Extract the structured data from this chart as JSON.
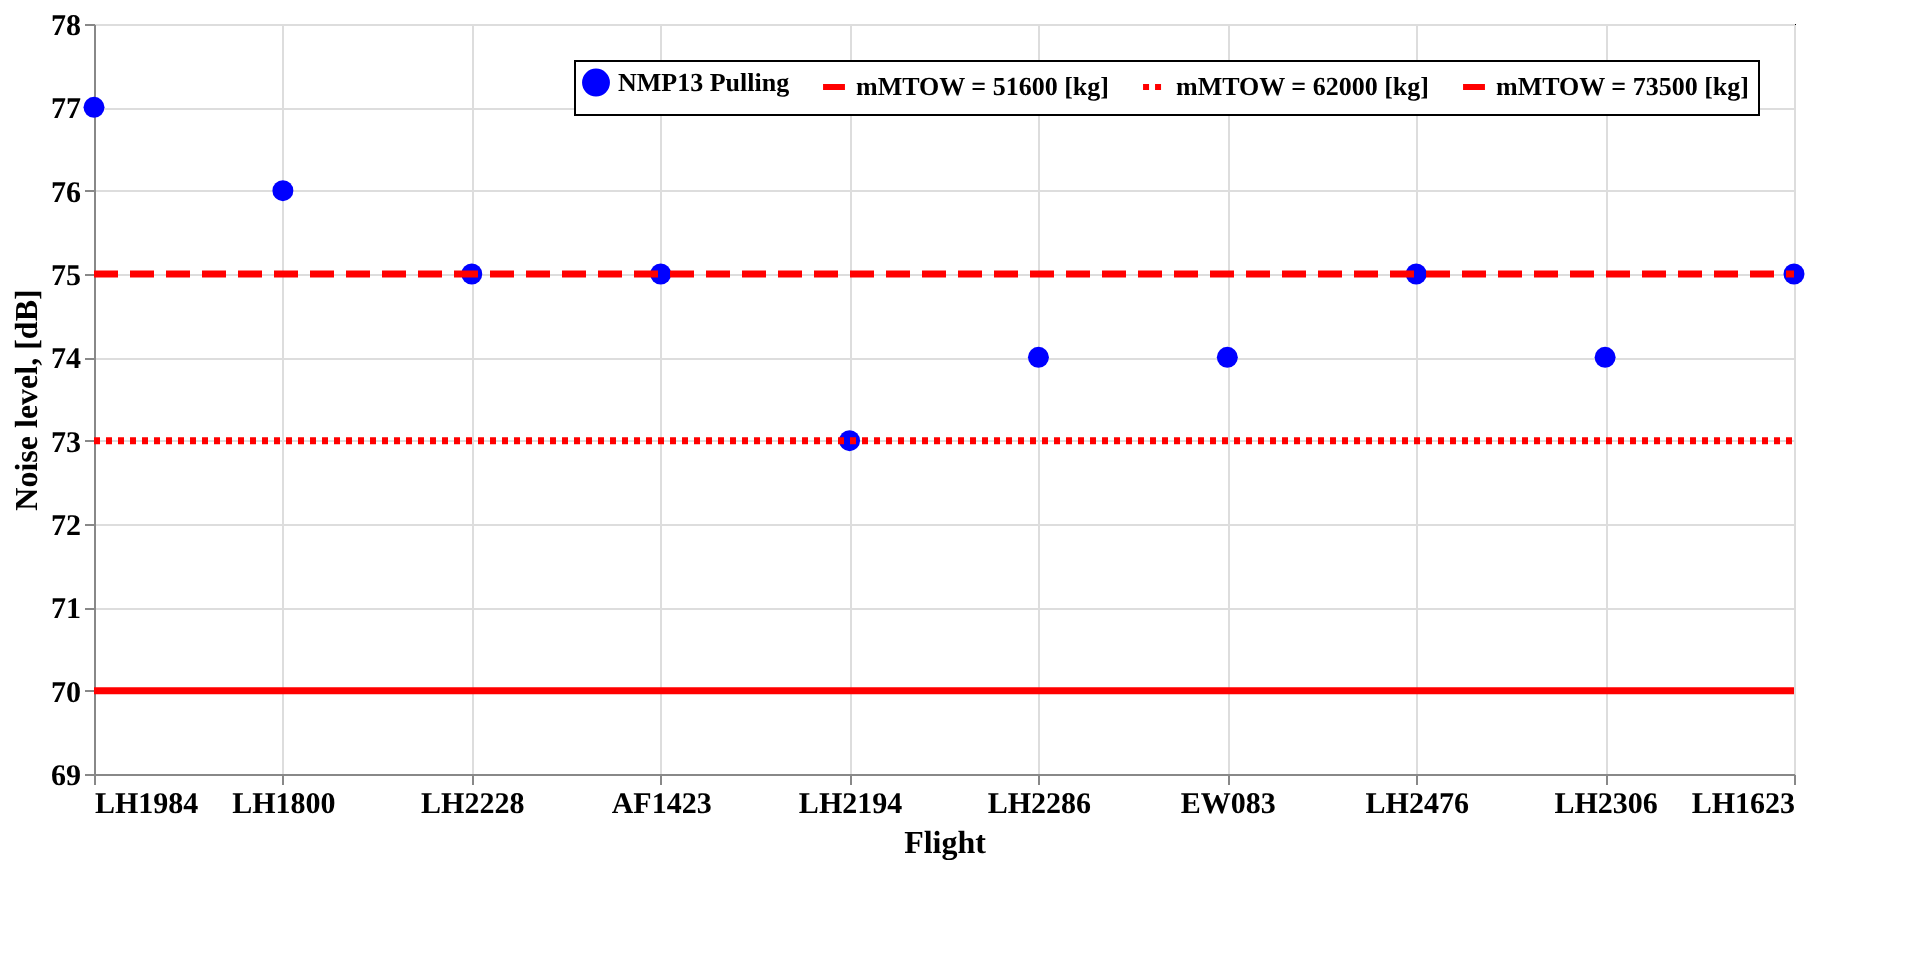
{
  "chart_data": {
    "type": "scatter",
    "xlabel": "Flight",
    "ylabel": "Noise level, [dB]",
    "categories": [
      "LH1984",
      "LH1800",
      "LH2228",
      "AF1423",
      "LH2194",
      "LH2286",
      "EW083",
      "LH2476",
      "LH2306",
      "LH1623"
    ],
    "series": [
      {
        "name": "NMP13 Pulling",
        "color": "#0000ff",
        "marker": "circle",
        "values": [
          77,
          76,
          75,
          75,
          73,
          74,
          74,
          75,
          74,
          75
        ]
      },
      {
        "name": "mMTOW = 51600 [kg]",
        "type": "line",
        "color": "#ff0000",
        "line_style": "solid",
        "marker": "none",
        "values": [
          70,
          70,
          70,
          70,
          70,
          70,
          70,
          70,
          70,
          70
        ]
      },
      {
        "name": "mMTOW = 62000 [kg]",
        "type": "line",
        "color": "#ff0000",
        "line_style": "dotted",
        "marker": "none",
        "values": [
          73,
          73,
          73,
          73,
          73,
          73,
          73,
          73,
          73,
          73
        ]
      },
      {
        "name": "mMTOW = 73500 [kg]",
        "type": "line",
        "color": "#ff0000",
        "line_style": "dashed",
        "marker": "none",
        "values": [
          75,
          75,
          75,
          75,
          75,
          75,
          75,
          75,
          75,
          75
        ]
      }
    ],
    "ylim": [
      69,
      78
    ],
    "yticks": [
      69,
      70,
      71,
      72,
      73,
      74,
      75,
      76,
      77,
      78
    ],
    "grid": true,
    "legend": "top right"
  }
}
